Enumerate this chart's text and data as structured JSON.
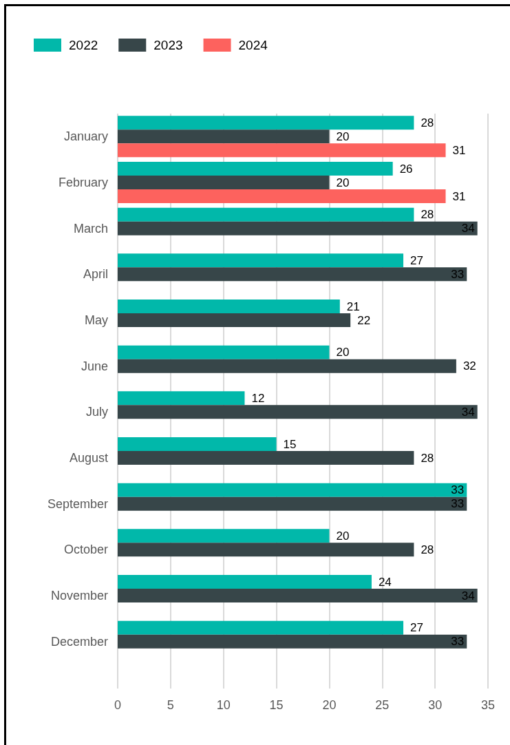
{
  "chart_data": {
    "type": "bar",
    "orientation": "horizontal",
    "categories": [
      "January",
      "February",
      "March",
      "April",
      "May",
      "June",
      "July",
      "August",
      "September",
      "October",
      "November",
      "December"
    ],
    "series": [
      {
        "name": "2022",
        "color": "#01b8aa",
        "values": [
          28,
          26,
          28,
          27,
          21,
          20,
          12,
          15,
          33,
          20,
          24,
          27
        ]
      },
      {
        "name": "2023",
        "color": "#374649",
        "values": [
          20,
          20,
          34,
          33,
          22,
          32,
          34,
          28,
          33,
          28,
          34,
          33
        ]
      },
      {
        "name": "2024",
        "color": "#fd625e",
        "values": [
          31,
          31,
          null,
          null,
          null,
          null,
          null,
          null,
          null,
          null,
          null,
          null
        ]
      }
    ],
    "xlim": [
      0,
      35
    ],
    "xticks": [
      0,
      5,
      10,
      15,
      20,
      25,
      30,
      35
    ],
    "grid": "x",
    "legend": "top left",
    "data_labels": true
  }
}
